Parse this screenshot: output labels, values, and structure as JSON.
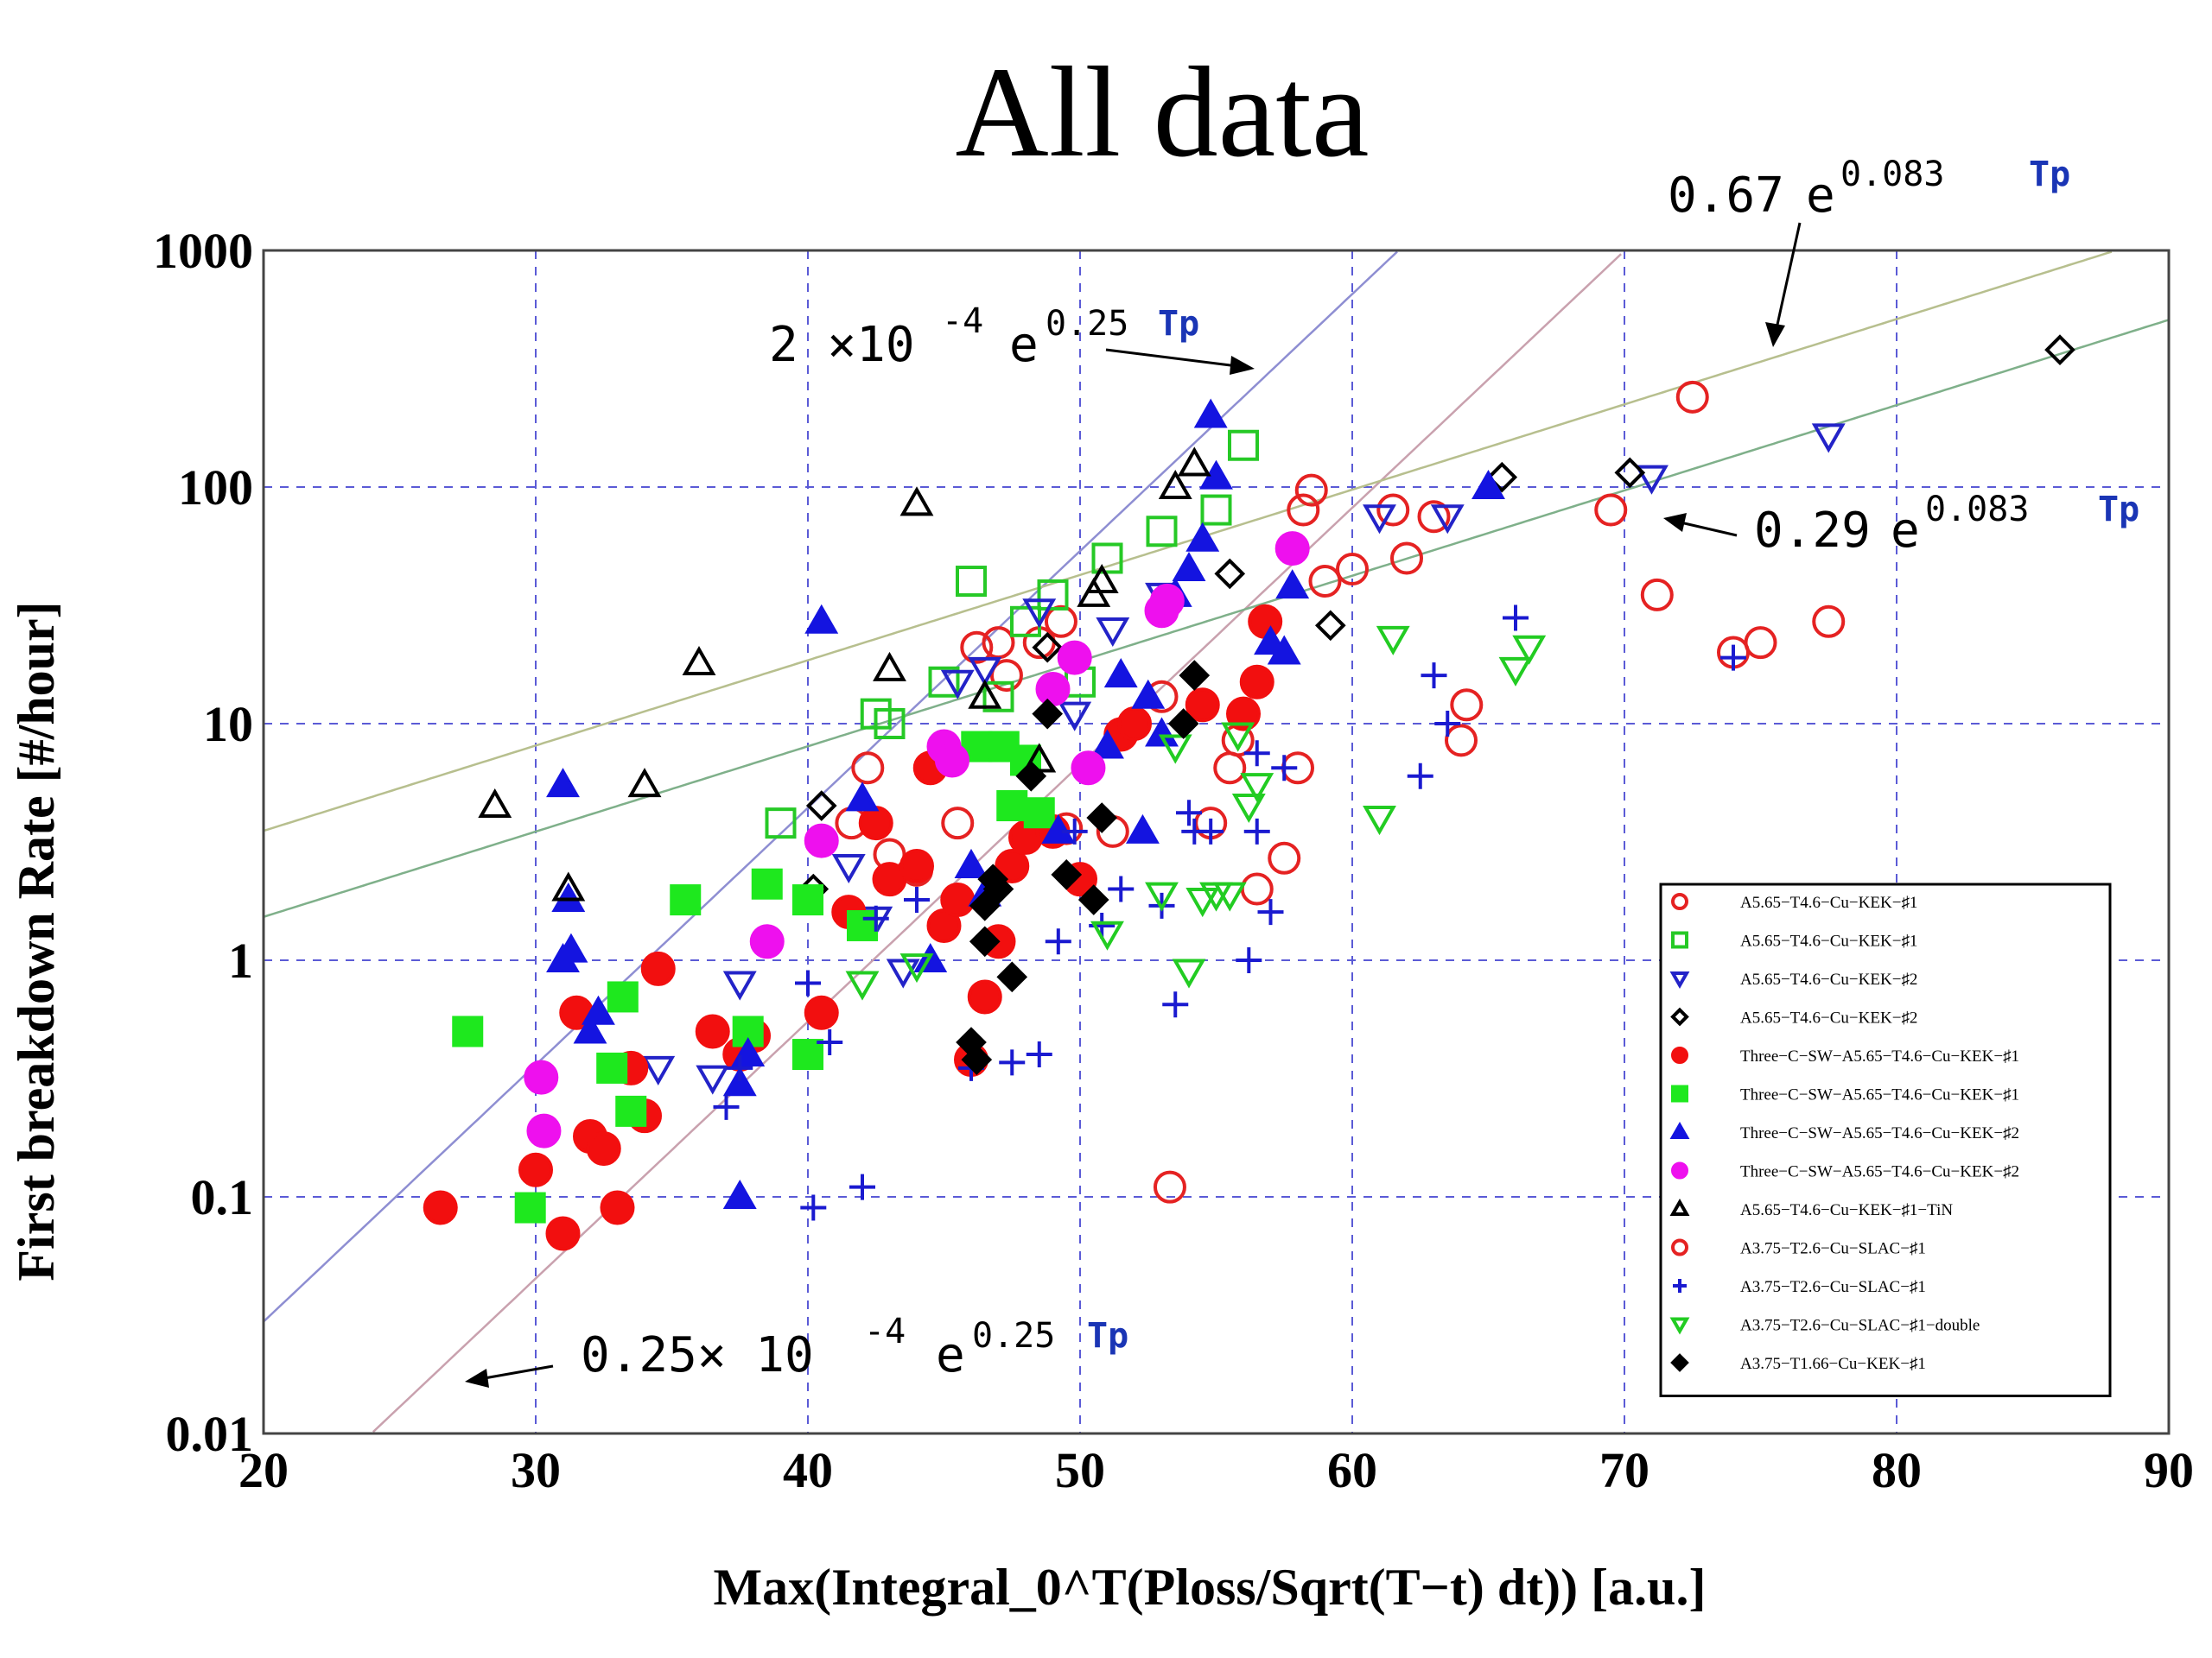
{
  "chart_data": {
    "type": "scatter",
    "title": "All data",
    "xlabel": "Max(Integral_0^T(Ploss/Sqrt(T−t) dt)) [a.u.]",
    "ylabel": "First breakdown Rate [#/hour]",
    "xlim": [
      20,
      90
    ],
    "ylim": [
      0.01,
      1000
    ],
    "yscale": "log",
    "grid": true,
    "legend_position": "bottom-right",
    "x_ticks": [
      "20",
      "30",
      "40",
      "50",
      "60",
      "70",
      "80",
      "90"
    ],
    "y_ticks": [
      "0.01",
      "0.1",
      "1",
      "10",
      "100",
      "1000"
    ],
    "fit_lines": [
      {
        "a": 0.0002,
        "b": 0.25,
        "color": "#8e8ed2"
      },
      {
        "a": 2.5e-05,
        "b": 0.25,
        "color": "#c9a1ae"
      },
      {
        "a": 0.67,
        "b": 0.083,
        "color": "#b7bf8e"
      },
      {
        "a": 0.29,
        "b": 0.083,
        "color": "#7fb08a"
      }
    ],
    "annotations": [
      {
        "coef": "2 ×10",
        "exp": "-4",
        "e": "e",
        "rate": "0.25",
        "tp": "Tp"
      },
      {
        "coef": "0.25× 10",
        "exp": "-4",
        "e": "e",
        "rate": "0.25",
        "tp": "Tp"
      },
      {
        "coef": "0.67",
        "exp": "",
        "e": "e",
        "rate": "0.083",
        "tp": "Tp"
      },
      {
        "coef": "0.29",
        "exp": "",
        "e": "e",
        "rate": "0.083",
        "tp": "Tp"
      }
    ],
    "series": [
      {
        "name": "A5.65−T4.6−Cu−KEK−♯1",
        "marker": "circle-open",
        "color": "#e52222",
        "points": [
          [
            41.6,
            3.8
          ],
          [
            42.2,
            6.5
          ],
          [
            43.0,
            2.8
          ],
          [
            44.0,
            2.4
          ],
          [
            45.5,
            3.8
          ],
          [
            46.2,
            21
          ],
          [
            47.0,
            22
          ],
          [
            47.3,
            16
          ],
          [
            48.5,
            22
          ],
          [
            49.3,
            27
          ],
          [
            51.2,
            3.5
          ],
          [
            53.0,
            13
          ],
          [
            54.8,
            3.8
          ],
          [
            55.5,
            6.5
          ],
          [
            55.8,
            8.5
          ],
          [
            58.0,
            6.5
          ],
          [
            58.2,
            80
          ],
          [
            58.5,
            97
          ],
          [
            59.0,
            40
          ],
          [
            60.0,
            45
          ],
          [
            61.5,
            80
          ],
          [
            62.0,
            50
          ],
          [
            63.0,
            75
          ],
          [
            64.0,
            8.5
          ],
          [
            64.2,
            12
          ],
          [
            69.5,
            80
          ],
          [
            71.2,
            35
          ],
          [
            72.5,
            240
          ],
          [
            74.0,
            20
          ],
          [
            75.0,
            22
          ],
          [
            77.5,
            27
          ],
          [
            57.5,
            2.7
          ],
          [
            56.5,
            2.0
          ],
          [
            53.3,
            0.11
          ],
          [
            49.5,
            3.6
          ]
        ]
      },
      {
        "name": "A5.65−T4.6−Cu−KEK−♯1",
        "marker": "square-open",
        "color": "#26c926",
        "points": [
          [
            39.0,
            3.8
          ],
          [
            42.5,
            11
          ],
          [
            43.0,
            10
          ],
          [
            45.0,
            15
          ],
          [
            46.0,
            40
          ],
          [
            47.0,
            13
          ],
          [
            48.0,
            27
          ],
          [
            49.0,
            35
          ],
          [
            50.0,
            15
          ],
          [
            51.0,
            50
          ],
          [
            53.0,
            65
          ],
          [
            55.0,
            80
          ],
          [
            56.0,
            150
          ]
        ]
      },
      {
        "name": "A5.65−T4.6−Cu−KEK−♯2",
        "marker": "triangle-down-open",
        "color": "#2323c8",
        "points": [
          [
            37.5,
            0.8
          ],
          [
            41.5,
            2.5
          ],
          [
            42.5,
            1.5
          ],
          [
            43.5,
            0.9
          ],
          [
            45.5,
            15
          ],
          [
            46.5,
            17
          ],
          [
            48.5,
            30
          ],
          [
            49.8,
            11
          ],
          [
            51.2,
            25
          ],
          [
            53.0,
            35
          ],
          [
            61.0,
            75
          ],
          [
            63.5,
            75
          ],
          [
            71.0,
            110
          ],
          [
            77.5,
            165
          ],
          [
            34.5,
            0.35
          ],
          [
            36.5,
            0.32
          ]
        ]
      },
      {
        "name": "A5.65−T4.6−Cu−KEK−♯2",
        "marker": "diamond-open",
        "color": "#000000",
        "points": [
          [
            40.2,
            2.0
          ],
          [
            40.5,
            4.5
          ],
          [
            48.8,
            21
          ],
          [
            55.5,
            43
          ],
          [
            59.2,
            26
          ],
          [
            65.5,
            110
          ],
          [
            70.2,
            115
          ],
          [
            86.0,
            380
          ]
        ]
      },
      {
        "name": "Three−C−SW−A5.65−T4.6−Cu−KEK−♯1",
        "marker": "circle-filled",
        "color": "#f20f0f",
        "points": [
          [
            26.5,
            0.09
          ],
          [
            30.0,
            0.13
          ],
          [
            31.0,
            0.07
          ],
          [
            31.5,
            0.6
          ],
          [
            32.0,
            0.18
          ],
          [
            32.5,
            0.16
          ],
          [
            33.0,
            0.09
          ],
          [
            33.5,
            0.35
          ],
          [
            34.0,
            0.22
          ],
          [
            34.5,
            0.92
          ],
          [
            36.5,
            0.5
          ],
          [
            37.5,
            0.4
          ],
          [
            38.0,
            0.48
          ],
          [
            40.5,
            0.6
          ],
          [
            41.5,
            1.6
          ],
          [
            42.5,
            3.8
          ],
          [
            43.0,
            2.2
          ],
          [
            44.0,
            2.5
          ],
          [
            44.5,
            6.5
          ],
          [
            45.0,
            1.4
          ],
          [
            45.5,
            1.8
          ],
          [
            46.0,
            0.38
          ],
          [
            46.5,
            0.7
          ],
          [
            47.0,
            1.2
          ],
          [
            47.5,
            2.5
          ],
          [
            48.0,
            3.3
          ],
          [
            49.0,
            3.5
          ],
          [
            50.0,
            2.2
          ],
          [
            51.5,
            9
          ],
          [
            52.0,
            10
          ],
          [
            54.5,
            12
          ],
          [
            56.0,
            11
          ],
          [
            56.5,
            15
          ],
          [
            56.8,
            27
          ]
        ]
      },
      {
        "name": "Three−C−SW−A5.65−T4.6−Cu−KEK−♯1",
        "marker": "square-filled",
        "color": "#1ee81e",
        "points": [
          [
            27.5,
            0.5
          ],
          [
            29.8,
            0.09
          ],
          [
            32.8,
            0.35
          ],
          [
            33.2,
            0.7
          ],
          [
            33.5,
            0.23
          ],
          [
            35.5,
            1.8
          ],
          [
            37.8,
            0.5
          ],
          [
            38.5,
            2.1
          ],
          [
            40.0,
            1.8
          ],
          [
            40.0,
            0.4
          ],
          [
            42.0,
            1.4
          ],
          [
            46.2,
            8
          ],
          [
            47.2,
            8
          ],
          [
            47.5,
            4.5
          ],
          [
            48.5,
            4.2
          ],
          [
            48.0,
            7
          ]
        ]
      },
      {
        "name": "Three−C−SW−A5.65−T4.6−Cu−KEK−♯2",
        "marker": "triangle-filled",
        "color": "#1414e0",
        "points": [
          [
            31.0,
            5.5
          ],
          [
            31.2,
            1.8
          ],
          [
            31.0,
            1.0
          ],
          [
            31.3,
            1.1
          ],
          [
            32.0,
            0.5
          ],
          [
            32.3,
            0.6
          ],
          [
            37.5,
            0.3
          ],
          [
            37.8,
            0.4
          ],
          [
            37.5,
            0.1
          ],
          [
            40.5,
            27
          ],
          [
            42.0,
            4.8
          ],
          [
            44.5,
            1.0
          ],
          [
            46.0,
            2.5
          ],
          [
            46.5,
            1.9
          ],
          [
            49.2,
            3.5
          ],
          [
            51.0,
            8
          ],
          [
            51.5,
            16
          ],
          [
            52.3,
            3.5
          ],
          [
            52.5,
            13
          ],
          [
            53.0,
            9
          ],
          [
            53.5,
            35
          ],
          [
            54.0,
            45
          ],
          [
            54.5,
            60
          ],
          [
            54.8,
            200
          ],
          [
            55.0,
            110
          ],
          [
            57.0,
            22
          ],
          [
            57.5,
            20
          ],
          [
            57.8,
            38
          ],
          [
            65.0,
            100
          ]
        ]
      },
      {
        "name": "Three−C−SW−A5.65−T4.6−Cu−KEK−♯2",
        "marker": "circle-filled",
        "color": "#ee10ee",
        "points": [
          [
            30.2,
            0.32
          ],
          [
            30.3,
            0.19
          ],
          [
            38.5,
            1.2
          ],
          [
            40.5,
            3.2
          ],
          [
            45.0,
            8
          ],
          [
            45.3,
            7
          ],
          [
            49.0,
            14
          ],
          [
            49.8,
            19
          ],
          [
            50.3,
            6.5
          ],
          [
            53.0,
            30
          ],
          [
            53.2,
            33
          ],
          [
            57.8,
            55
          ]
        ]
      },
      {
        "name": "A5.65−T4.6−Cu−KEK−♯1−TiN",
        "marker": "triangle-open",
        "color": "#000000",
        "points": [
          [
            28.5,
            4.5
          ],
          [
            31.2,
            2.0
          ],
          [
            34.0,
            5.5
          ],
          [
            36.0,
            18
          ],
          [
            43.0,
            17
          ],
          [
            44.0,
            85
          ],
          [
            46.5,
            13
          ],
          [
            48.5,
            7
          ],
          [
            50.5,
            35
          ],
          [
            50.8,
            40
          ],
          [
            53.5,
            100
          ],
          [
            54.2,
            125
          ]
        ]
      },
      {
        "name": "A3.75−T2.6−Cu−SLAC−♯1",
        "marker": "circle-open",
        "color": "#e52222",
        "points": []
      },
      {
        "name": "A3.75−T2.6−Cu−SLAC−♯1",
        "marker": "plus",
        "color": "#1a1ad0",
        "points": [
          [
            37.0,
            0.24
          ],
          [
            37.5,
            0.35
          ],
          [
            40.0,
            0.8
          ],
          [
            40.2,
            0.09
          ],
          [
            40.8,
            0.45
          ],
          [
            42.0,
            0.11
          ],
          [
            42.5,
            1.5
          ],
          [
            44.0,
            1.8
          ],
          [
            46.0,
            0.35
          ],
          [
            47.5,
            0.37
          ],
          [
            48.5,
            0.4
          ],
          [
            49.2,
            1.2
          ],
          [
            49.8,
            3.5
          ],
          [
            50.8,
            1.4
          ],
          [
            51.5,
            2.0
          ],
          [
            53.0,
            1.7
          ],
          [
            53.5,
            0.65
          ],
          [
            54.0,
            4.2
          ],
          [
            54.2,
            3.5
          ],
          [
            54.8,
            3.5
          ],
          [
            56.2,
            1.0
          ],
          [
            56.5,
            7.5
          ],
          [
            56.5,
            3.5
          ],
          [
            57.0,
            1.6
          ],
          [
            57.5,
            6.5
          ],
          [
            62.5,
            6
          ],
          [
            63.0,
            16
          ],
          [
            63.5,
            10
          ],
          [
            66.0,
            28
          ],
          [
            74.0,
            19
          ]
        ]
      },
      {
        "name": "A3.75−T2.6−Cu−SLAC−♯1−double",
        "marker": "triangle-down-open",
        "color": "#22cc22",
        "points": [
          [
            42.0,
            0.8
          ],
          [
            44.0,
            0.95
          ],
          [
            51.0,
            1.3
          ],
          [
            53.0,
            1.9
          ],
          [
            53.5,
            8
          ],
          [
            54.0,
            0.9
          ],
          [
            54.5,
            1.8
          ],
          [
            55.0,
            1.9
          ],
          [
            55.5,
            1.9
          ],
          [
            55.8,
            9
          ],
          [
            56.2,
            4.5
          ],
          [
            56.5,
            5.5
          ],
          [
            61.0,
            4
          ],
          [
            61.5,
            23
          ],
          [
            66.0,
            17
          ],
          [
            66.5,
            21
          ]
        ]
      },
      {
        "name": "A3.75−T1.66−Cu−KEK−♯1",
        "marker": "diamond-filled",
        "color": "#000000",
        "points": [
          [
            46.0,
            0.45
          ],
          [
            46.2,
            0.38
          ],
          [
            46.5,
            1.2
          ],
          [
            46.5,
            1.7
          ],
          [
            46.8,
            2.2
          ],
          [
            47.0,
            2.0
          ],
          [
            47.5,
            0.85
          ],
          [
            48.2,
            6
          ],
          [
            48.8,
            11
          ],
          [
            49.5,
            2.3
          ],
          [
            50.5,
            1.8
          ],
          [
            50.8,
            4.0
          ],
          [
            53.8,
            10
          ],
          [
            54.2,
            16
          ]
        ]
      }
    ]
  }
}
